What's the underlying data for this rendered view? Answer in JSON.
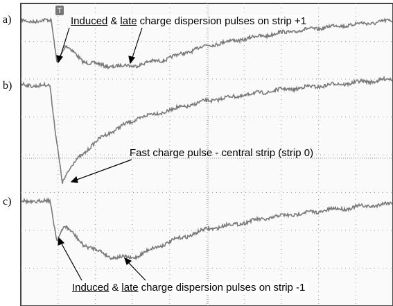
{
  "panel_labels": [
    "a)",
    "b)",
    "c)"
  ],
  "annotations": [
    {
      "parts": [
        "Induced",
        "&",
        "late",
        "charge dispersion pulses on strip +1"
      ]
    },
    {
      "parts": [
        "Fast charge pulse - central strip (strip 0)"
      ]
    },
    {
      "parts": [
        "Induced",
        "&",
        "late",
        "charge dispersion pulses on strip -1"
      ]
    }
  ],
  "trigger_marker": "T"
}
